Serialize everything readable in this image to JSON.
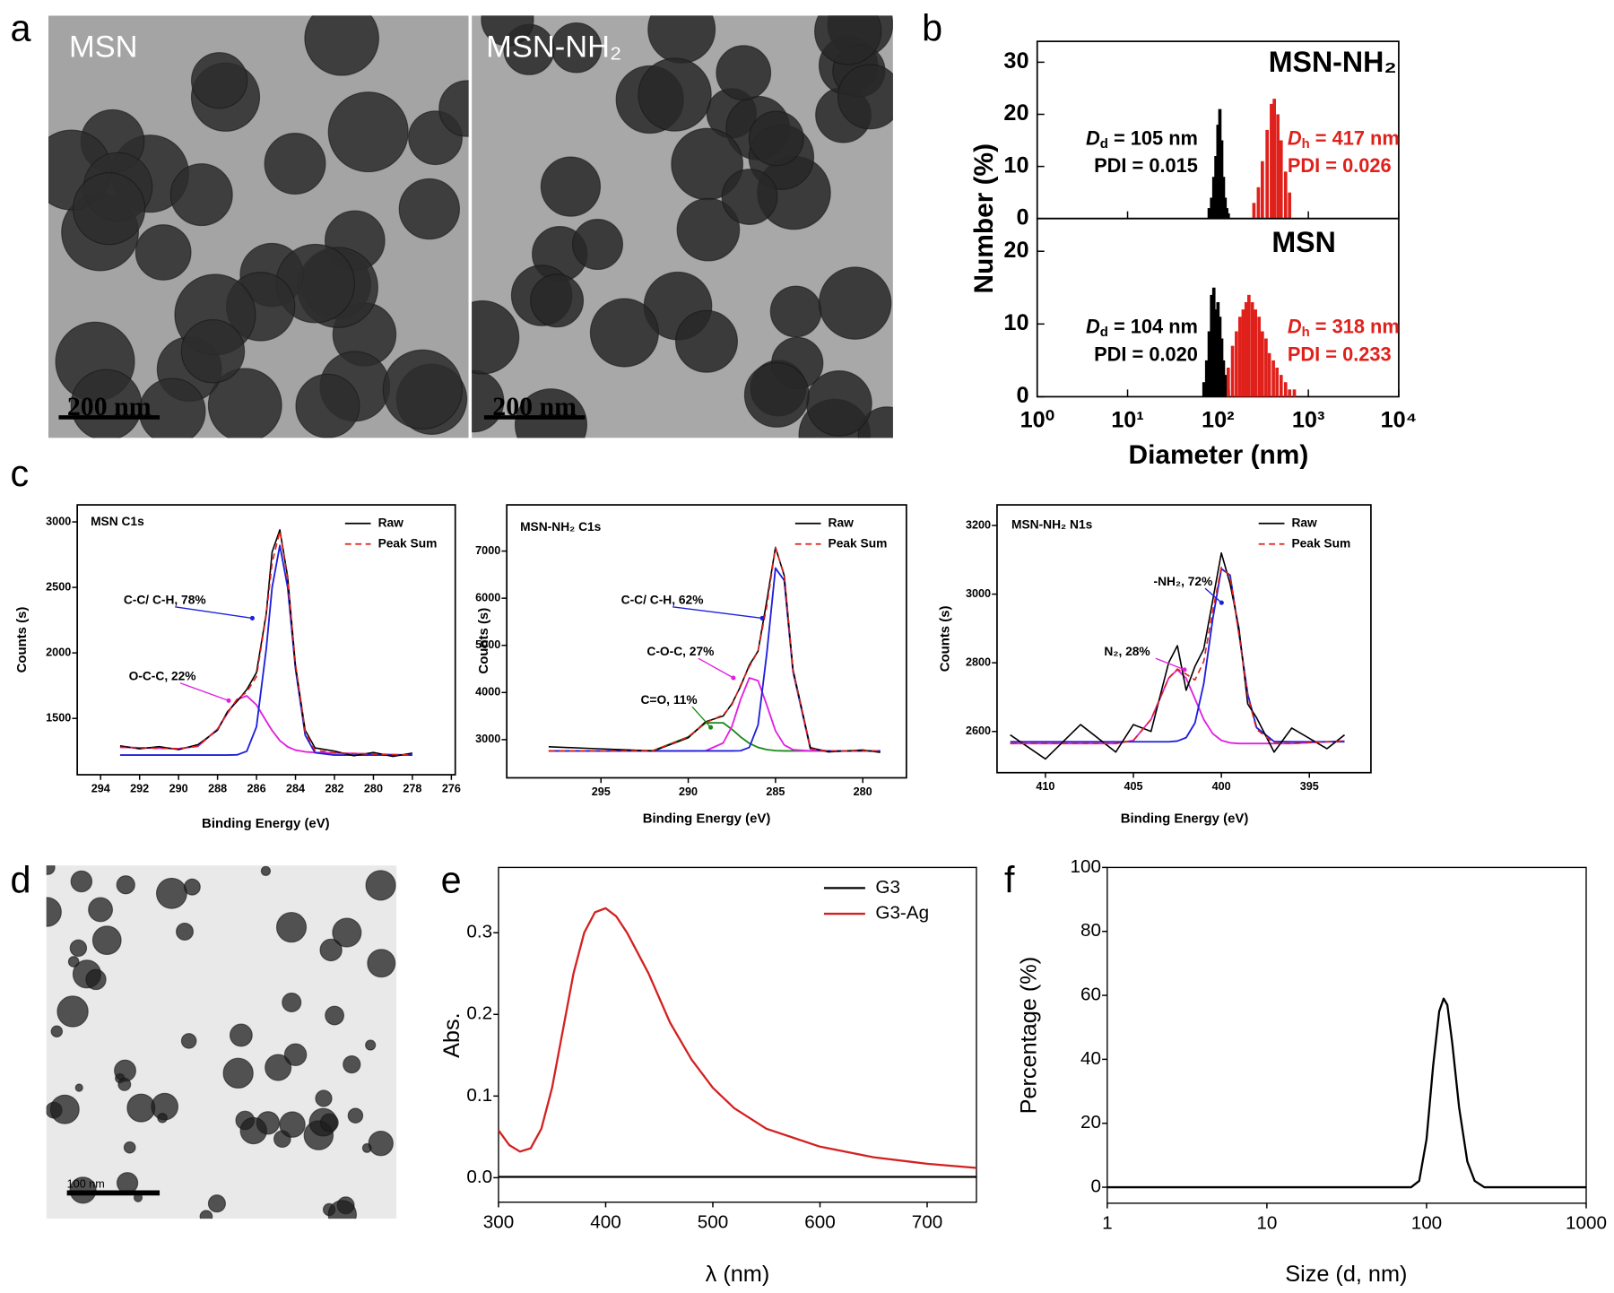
{
  "panel_labels": [
    "a",
    "b",
    "c",
    "d",
    "e",
    "f"
  ],
  "tem_images": [
    {
      "label": "MSN",
      "scale_bar": "200 nm"
    },
    {
      "label": "MSN-NH₂",
      "scale_bar": "200 nm"
    },
    {
      "scale_bar": "100 nm"
    }
  ],
  "chart_data": [
    {
      "type": "bar",
      "title": "MSN-NH₂",
      "xscale": "log",
      "ylim": [
        0,
        34
      ],
      "yticks": [
        0,
        10,
        20,
        30
      ],
      "series": [
        {
          "color": "#000000",
          "x": [
            80,
            85,
            90,
            95,
            100,
            105,
            110,
            115,
            120,
            125,
            130
          ],
          "values": [
            2,
            4,
            8,
            12,
            18,
            21,
            15,
            8,
            4,
            2,
            1
          ],
          "diameter": {
            "symbol": "D",
            "sub": "d",
            "text": " = 105 nm"
          },
          "pdi": "PDI = 0.015"
        },
        {
          "color": "#e0201b",
          "x": [
            250,
            280,
            310,
            350,
            390,
            420,
            460,
            500,
            560,
            620
          ],
          "values": [
            3,
            6,
            11,
            17,
            22,
            23,
            20,
            15,
            9,
            5
          ],
          "diameter": {
            "symbol": "D",
            "sub": "h",
            "text": " = 417 nm"
          },
          "pdi": "PDI = 0.026"
        }
      ]
    },
    {
      "type": "bar",
      "title": "MSN",
      "xscale": "log",
      "xlabel": "Diameter (nm)",
      "ylabel": "Number (%)",
      "xlim": [
        1,
        10000
      ],
      "xticks": [
        {
          "value": 1,
          "label": "10⁰"
        },
        {
          "value": 10,
          "label": "10¹"
        },
        {
          "value": 100,
          "label": "10²"
        },
        {
          "value": 1000,
          "label": "10³"
        },
        {
          "value": 10000,
          "label": "10⁴"
        }
      ],
      "ylim": [
        0,
        24.5
      ],
      "yticks": [
        0,
        10,
        20
      ],
      "series": [
        {
          "color": "#000000",
          "x": [
            70,
            75,
            80,
            85,
            90,
            95,
            100,
            105,
            110,
            115,
            120,
            130
          ],
          "values": [
            2,
            5,
            9,
            14,
            15,
            12,
            13,
            11,
            8,
            5,
            3,
            1
          ],
          "diameter": {
            "symbol": "D",
            "sub": "d",
            "text": " = 104 nm"
          },
          "pdi": "PDI = 0.020"
        },
        {
          "color": "#e0201b",
          "x": [
            130,
            145,
            160,
            175,
            190,
            205,
            220,
            240,
            260,
            285,
            310,
            340,
            370,
            410,
            450,
            500,
            560,
            620,
            700
          ],
          "values": [
            4,
            7,
            9,
            11,
            12,
            13,
            14,
            13,
            12,
            11,
            9,
            8,
            6,
            5,
            4,
            3,
            2,
            1,
            1
          ],
          "diameter": {
            "symbol": "D",
            "sub": "h",
            "text": " = 318 nm"
          },
          "pdi": "PDI = 0.233"
        }
      ]
    },
    {
      "type": "line",
      "title": "MSN C1s",
      "xlabel": "Binding Energy (eV)",
      "ylabel": "Counts (s)",
      "xlim": [
        295.2,
        275.8
      ],
      "xticks": [
        294,
        292,
        290,
        288,
        286,
        284,
        282,
        280,
        278,
        276
      ],
      "ylim": [
        1070,
        3130
      ],
      "yticks": [
        1500,
        2000,
        2500,
        3000
      ],
      "x": [
        293,
        292,
        291,
        290,
        289,
        288,
        287.5,
        287,
        286.5,
        286,
        285.5,
        285.2,
        284.8,
        284.4,
        284,
        283.5,
        283,
        282,
        281,
        280,
        279,
        278
      ],
      "series": [
        {
          "name": "Raw",
          "color": "#000000",
          "values": [
            1290,
            1268,
            1285,
            1262,
            1300,
            1410,
            1550,
            1630,
            1720,
            1850,
            2300,
            2770,
            2940,
            2580,
            1900,
            1410,
            1275,
            1250,
            1215,
            1240,
            1210,
            1235
          ]
        },
        {
          "name": "Peak Sum",
          "color": "#e0201b",
          "dash": true,
          "values": [
            1280,
            1276,
            1272,
            1269,
            1288,
            1418,
            1538,
            1646,
            1701,
            1819,
            2289,
            2687,
            2930,
            2563,
            1916,
            1398,
            1258,
            1236,
            1232,
            1228,
            1224,
            1220
          ]
        }
      ],
      "components": [
        {
          "color": "#e020e0",
          "values": [
            1280,
            1276,
            1272,
            1269,
            1288,
            1418,
            1538,
            1644,
            1672,
            1603,
            1479,
            1407,
            1330,
            1283,
            1258,
            1245,
            1240,
            1236,
            1232,
            1228,
            1224,
            1220
          ]
        },
        {
          "color": "#1f1fdc",
          "values": [
            1220,
            1220,
            1220,
            1220,
            1220,
            1220,
            1220,
            1222,
            1249,
            1436,
            2030,
            2500,
            2820,
            2500,
            1878,
            1373,
            1238,
            1220,
            1220,
            1220,
            1220,
            1220
          ]
        }
      ],
      "annotations": [
        "C-C/ C-H, 78%",
        "O-C-C, 22%"
      ]
    },
    {
      "type": "line",
      "title": "MSN-NH₂ C1s",
      "xlabel": "Binding Energy (eV)",
      "ylabel": "Counts (s)",
      "xlim": [
        300.4,
        277.5
      ],
      "xticks": [
        295,
        290,
        285,
        280
      ],
      "ylim": [
        2190,
        7980
      ],
      "yticks": [
        3000,
        4000,
        5000,
        6000,
        7000
      ],
      "x": [
        298,
        296,
        294,
        292,
        290,
        289,
        288,
        287.5,
        287,
        286.5,
        286,
        285.5,
        285,
        284.5,
        284,
        283,
        282,
        280,
        279
      ],
      "series": [
        {
          "name": "Raw",
          "color": "#000000",
          "values": [
            2850,
            2820,
            2790,
            2760,
            3040,
            3380,
            3500,
            3760,
            4130,
            4580,
            4880,
            5950,
            7080,
            6480,
            4490,
            2830,
            2740,
            2780,
            2730
          ]
        },
        {
          "name": "Peak Sum",
          "color": "#e0201b",
          "dash": true,
          "values": [
            2760,
            2760,
            2760,
            2769,
            3058,
            3361,
            3524,
            3740,
            4154,
            4546,
            4879,
            5835,
            7072,
            6505,
            4471,
            2805,
            2760,
            2760,
            2760
          ]
        }
      ],
      "components": [
        {
          "color": "#1a8a1a",
          "values": [
            2760,
            2760,
            2760,
            2769,
            3058,
            3356,
            3356,
            3220,
            3058,
            2922,
            2834,
            2789,
            2766,
            2760,
            2760,
            2760,
            2760,
            2760,
            2760
          ]
        },
        {
          "color": "#e020e0",
          "values": [
            2760,
            2760,
            2760,
            2760,
            2760,
            2765,
            2928,
            3280,
            3851,
            4310,
            4251,
            3731,
            3187,
            2888,
            2786,
            2760,
            2760,
            2760,
            2760
          ]
        },
        {
          "color": "#1f1fdc",
          "values": [
            2760,
            2760,
            2760,
            2760,
            2760,
            2760,
            2760,
            2760,
            2765,
            2834,
            3314,
            4835,
            6639,
            6376,
            4445,
            2805,
            2760,
            2760,
            2760
          ]
        }
      ],
      "annotations": [
        "C-C/ C-H, 62%",
        "C-O-C, 27%",
        "C=O, 11%"
      ]
    },
    {
      "type": "line",
      "title": "MSN-NH₂ N1s",
      "xlabel": "Binding Energy (eV)",
      "ylabel": "Counts (s)",
      "xlim": [
        412.75,
        391.5
      ],
      "xticks": [
        410,
        405,
        400,
        395
      ],
      "ylim": [
        2480,
        3260
      ],
      "yticks": [
        2600,
        2800,
        3000,
        3200
      ],
      "x": [
        412,
        410,
        408,
        406,
        405,
        404,
        403,
        402.5,
        402,
        401.5,
        401,
        400.5,
        400,
        399.5,
        399,
        398.5,
        398,
        397,
        396,
        394,
        393
      ],
      "series": [
        {
          "name": "Raw",
          "color": "#000000",
          "values": [
            2590,
            2520,
            2620,
            2540,
            2620,
            2600,
            2800,
            2850,
            2720,
            2790,
            2840,
            2980,
            3120,
            3030,
            2900,
            2680,
            2640,
            2540,
            2610,
            2550,
            2590
          ]
        },
        {
          "name": "Peak Sum",
          "color": "#e0201b",
          "dash": true,
          "values": [
            2565,
            2565,
            2565,
            2565,
            2574,
            2635,
            2755,
            2782,
            2767,
            2750,
            2804,
            2949,
            3078,
            3052,
            2881,
            2704,
            2606,
            2566,
            2565,
            2570,
            2572
          ]
        }
      ],
      "components": [
        {
          "color": "#e020e0",
          "values": [
            2565,
            2565,
            2565,
            2565,
            2574,
            2635,
            2755,
            2780,
            2755,
            2695,
            2635,
            2594,
            2574,
            2567,
            2565,
            2565,
            2565,
            2565,
            2565,
            2570,
            2572
          ]
        },
        {
          "color": "#1f1fdc",
          "values": [
            2570,
            2570,
            2570,
            2570,
            2570,
            2570,
            2570,
            2572,
            2582,
            2625,
            2739,
            2925,
            3074,
            3055,
            2886,
            2709,
            2611,
            2571,
            2570,
            2570,
            2570
          ]
        }
      ],
      "annotations": [
        "-NH₂, 72%",
        "N₂, 28%"
      ]
    },
    {
      "type": "line",
      "xlabel": "λ (nm)",
      "ylabel": "Abs.",
      "xlim": [
        300,
        746
      ],
      "xticks": [
        300,
        400,
        500,
        600,
        700
      ],
      "ylim": [
        -0.03,
        0.38
      ],
      "yticks": [
        {
          "value": 0,
          "label": "0.0"
        },
        0.1,
        0.2,
        0.3
      ],
      "x": [
        300,
        310,
        320,
        330,
        340,
        350,
        360,
        370,
        380,
        390,
        400,
        410,
        420,
        440,
        460,
        480,
        500,
        520,
        550,
        600,
        650,
        700,
        746
      ],
      "series": [
        {
          "name": "G3",
          "color": "#000000",
          "values": [
            0.001,
            0.001,
            0.001,
            0.001,
            0.001,
            0.001,
            0.001,
            0.001,
            0.001,
            0.001,
            0.001,
            0.001,
            0.001,
            0.001,
            0.001,
            0.001,
            0.001,
            0.001,
            0.001,
            0.001,
            0.001,
            0.001,
            0.001
          ]
        },
        {
          "name": "G3-Ag",
          "color": "#d42020",
          "values": [
            0.058,
            0.04,
            0.032,
            0.036,
            0.06,
            0.11,
            0.18,
            0.25,
            0.3,
            0.325,
            0.33,
            0.32,
            0.3,
            0.25,
            0.19,
            0.145,
            0.11,
            0.085,
            0.06,
            0.038,
            0.025,
            0.017,
            0.012
          ]
        }
      ]
    },
    {
      "type": "line",
      "xscale": "log",
      "xlabel": "Size (d, nm)",
      "ylabel": "Percentage (%)",
      "xlim": [
        1,
        1000
      ],
      "xticks": [
        1,
        10,
        100,
        1000
      ],
      "ylim": [
        -5,
        100
      ],
      "yticks": [
        0,
        20,
        40,
        60,
        80,
        100
      ],
      "x": [
        1,
        50,
        80,
        90,
        100,
        110,
        120,
        128,
        135,
        145,
        160,
        180,
        200,
        230,
        1000
      ],
      "series": [
        {
          "color": "#000000",
          "values": [
            0,
            0,
            0,
            2,
            15,
            38,
            55,
            59,
            57,
            45,
            25,
            8,
            2,
            0,
            0
          ]
        }
      ]
    }
  ]
}
